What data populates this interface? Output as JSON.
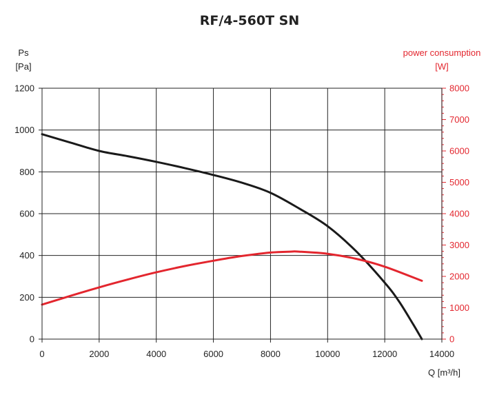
{
  "chart_data": {
    "type": "line",
    "title": "RF/4-560T SN",
    "xlabel": "Q [m³/h]",
    "ylabel_line1": "Ps",
    "ylabel_line2": "[Pa]",
    "y2label_line1": "power consumption",
    "y2label_line2": "[W]",
    "xlim": [
      0,
      14000
    ],
    "ylim": [
      0,
      1200
    ],
    "y2lim": [
      0,
      8000
    ],
    "x_ticks": [
      0,
      2000,
      4000,
      6000,
      8000,
      10000,
      12000,
      14000
    ],
    "y_ticks": [
      0,
      200,
      400,
      600,
      800,
      1000,
      1200
    ],
    "y2_ticks": [
      0,
      1000,
      2000,
      3000,
      4000,
      5000,
      6000,
      7000,
      8000
    ],
    "grid": true,
    "colors": {
      "pressure": "#1a1a1a",
      "power": "#e3262e",
      "grid": "#222222"
    },
    "series": [
      {
        "axis": "left",
        "x": [
          0,
          1000,
          2000,
          3000,
          4000,
          5000,
          6000,
          7000,
          8000,
          9000,
          10000,
          11000,
          12000,
          12500,
          13000,
          13300
        ],
        "values": [
          980,
          940,
          900,
          875,
          848,
          818,
          785,
          748,
          700,
          625,
          540,
          420,
          270,
          180,
          70,
          0
        ]
      },
      {
        "axis": "right",
        "x": [
          0,
          1000,
          2000,
          3000,
          4000,
          5000,
          6000,
          7000,
          8000,
          8700,
          9000,
          10000,
          11000,
          12000,
          13300
        ],
        "values": [
          1100,
          1380,
          1650,
          1900,
          2130,
          2330,
          2500,
          2650,
          2760,
          2790,
          2790,
          2720,
          2560,
          2310,
          1860
        ]
      }
    ]
  }
}
